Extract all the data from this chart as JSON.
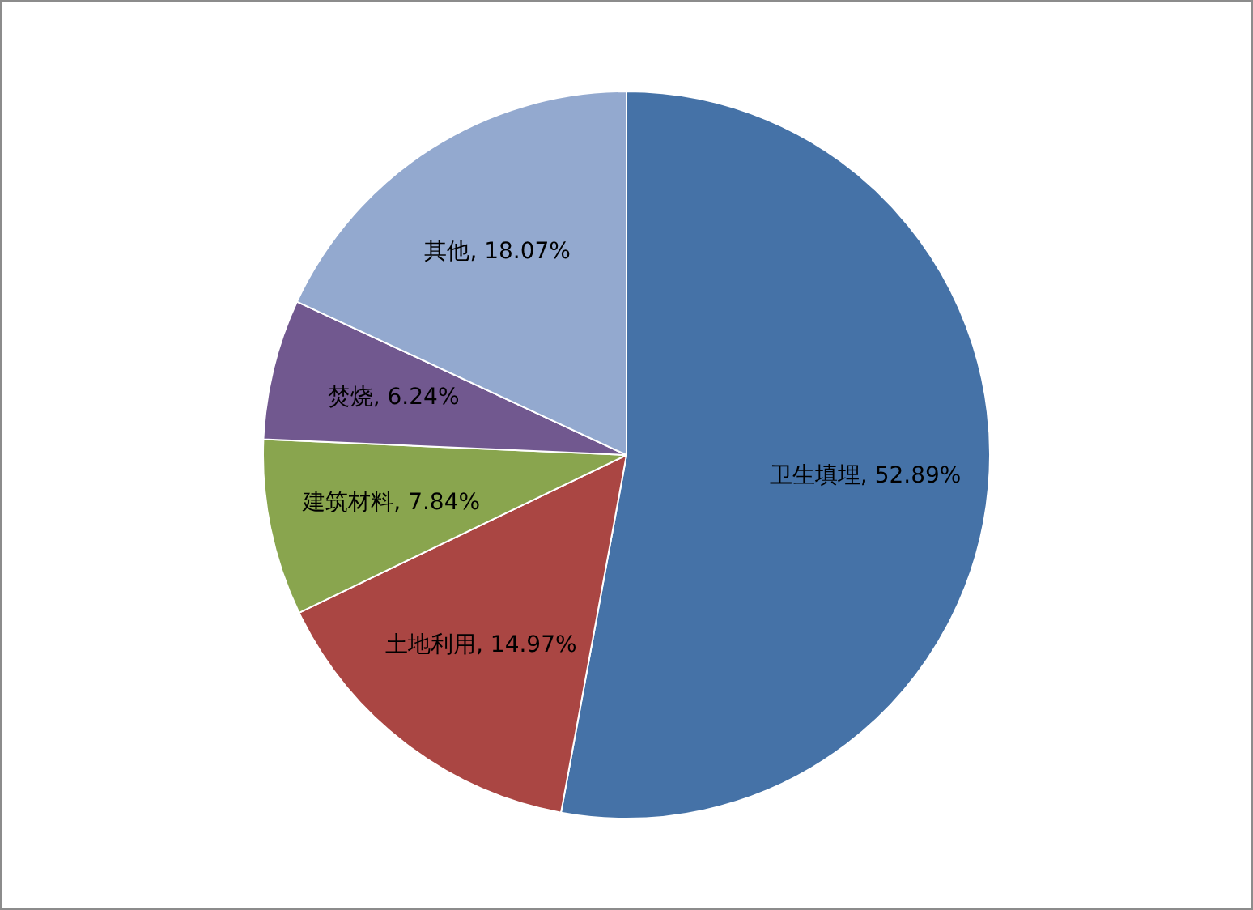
{
  "chart_data": {
    "type": "pie",
    "categories": [
      "卫生填埋",
      "土地利用",
      "建筑材料",
      "焚烧",
      "其他"
    ],
    "values": [
      52.89,
      14.97,
      7.84,
      6.24,
      18.07
    ],
    "colors": [
      "#4572a7",
      "#aa4643",
      "#89a54e",
      "#71588f",
      "#93a9cf"
    ],
    "value_labels": [
      ", 52.89%",
      ", 14.97%",
      ", 7.84%",
      ", 6.24%",
      ", 18.07%"
    ]
  }
}
